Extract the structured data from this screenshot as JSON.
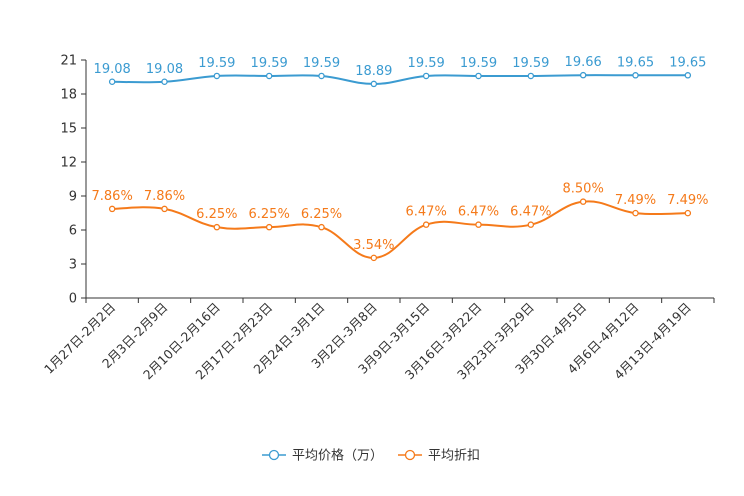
{
  "chart_data": {
    "type": "line",
    "categories": [
      "1月27日-2月2日",
      "2月3日-2月9日",
      "2月10日-2月16日",
      "2月17日-2月23日",
      "2月24日-3月1日",
      "3月2日-3月8日",
      "3月9日-3月15日",
      "3月16日-3月22日",
      "3月23日-3月29日",
      "3月30日-4月5日",
      "4月6日-4月12日",
      "4月13日-4月19日"
    ],
    "series": [
      {
        "name": "平均价格（万）",
        "color": "#3b9bd1",
        "values": [
          19.08,
          19.08,
          19.59,
          19.59,
          19.59,
          18.89,
          19.59,
          19.59,
          19.59,
          19.66,
          19.65,
          19.65
        ],
        "labels": [
          "19.08",
          "19.08",
          "19.59",
          "19.59",
          "19.59",
          "18.89",
          "19.59",
          "19.59",
          "19.59",
          "19.66",
          "19.65",
          "19.65"
        ]
      },
      {
        "name": "平均折扣",
        "color": "#f57a1a",
        "values": [
          7.86,
          7.86,
          6.25,
          6.25,
          6.25,
          3.54,
          6.47,
          6.47,
          6.47,
          8.5,
          7.49,
          7.49
        ],
        "labels": [
          "7.86%",
          "7.86%",
          "6.25%",
          "6.25%",
          "6.25%",
          "3.54%",
          "6.47%",
          "6.47%",
          "6.47%",
          "8.50%",
          "7.49%",
          "7.49%"
        ]
      }
    ],
    "ylim": [
      0,
      21
    ],
    "yticks": [
      0,
      3,
      6,
      9,
      12,
      15,
      18,
      21
    ],
    "legend_position": "bottom-center",
    "grid": false
  }
}
